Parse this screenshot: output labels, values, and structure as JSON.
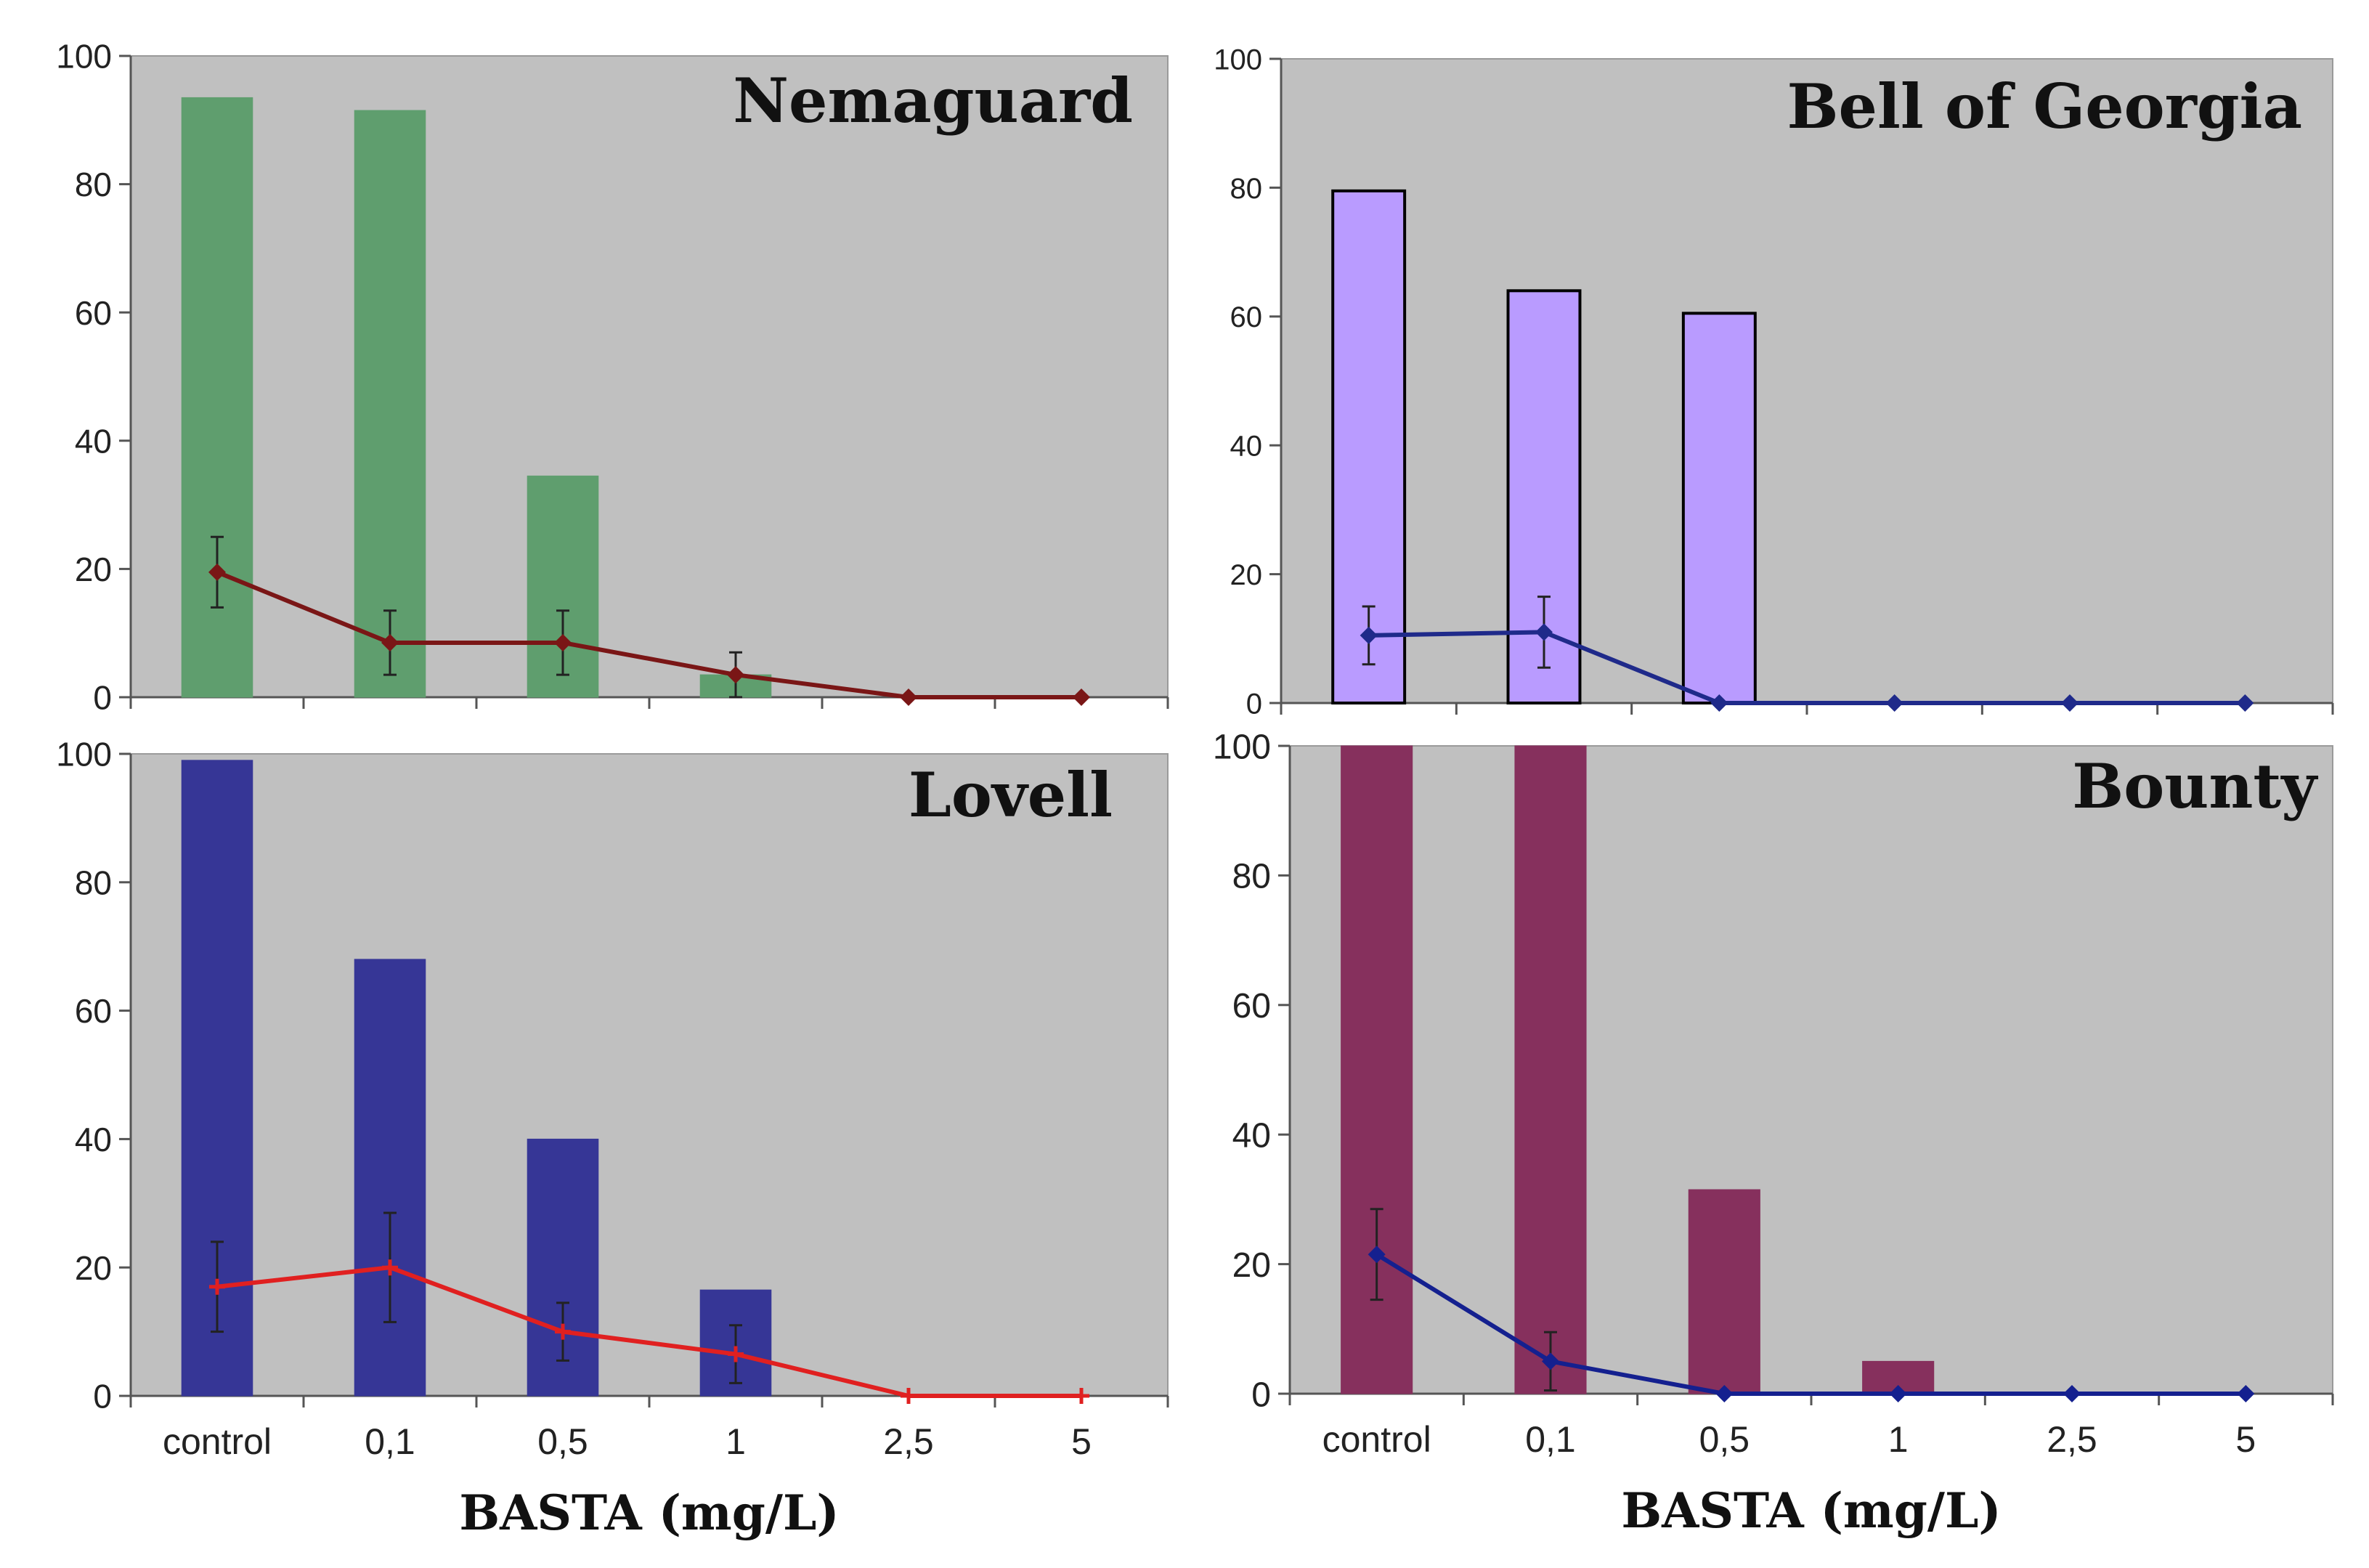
{
  "colors": {
    "plot_background": "#c0c0c0",
    "axis": "#555555",
    "nemaguard_bar": "#5f9e6e",
    "nemaguard_line": "#7a1616",
    "bell_bar": "#b99bff",
    "bell_line": "#1f2a8a",
    "lovell_bar": "#363696",
    "lovell_line": "#e02020",
    "bounty_bar": "#86305d",
    "bounty_line": "#14208f"
  },
  "chart_data": [
    {
      "type": "bar",
      "title": "Nemaguard",
      "categories": [
        "control",
        "0,1",
        "0,5",
        "1",
        "2,5",
        "5"
      ],
      "series": [
        {
          "name": "bars",
          "kind": "bar",
          "values": [
            93.5,
            91.5,
            34.5,
            3.5,
            0,
            0
          ]
        },
        {
          "name": "line",
          "kind": "line",
          "values": [
            19.5,
            8.5,
            8.5,
            3.5,
            0,
            0
          ],
          "errors": [
            5.5,
            5,
            5,
            3.5,
            0,
            0
          ]
        }
      ],
      "ylim": [
        0,
        100
      ],
      "yticks": [
        "0",
        "20",
        "40",
        "60",
        "80",
        "100"
      ],
      "xlabel": "",
      "ylabel": ""
    },
    {
      "type": "bar",
      "title": "Bell of Georgia",
      "categories": [
        "control",
        "0,1",
        "0,5",
        "1",
        "2,5",
        "5"
      ],
      "series": [
        {
          "name": "bars",
          "kind": "bar",
          "values": [
            79.5,
            64,
            60.5,
            0,
            0,
            0
          ]
        },
        {
          "name": "line",
          "kind": "line",
          "values": [
            10.5,
            11,
            0,
            0,
            0,
            0
          ],
          "errors": [
            4.5,
            5.5,
            0,
            0,
            0,
            0
          ]
        }
      ],
      "ylim": [
        0,
        100
      ],
      "yticks": [
        "0",
        "20",
        "40",
        "60",
        "80",
        "100"
      ],
      "xlabel": "",
      "ylabel": ""
    },
    {
      "type": "bar",
      "title": "Lovell",
      "categories": [
        "control",
        "0,1",
        "0,5",
        "1",
        "2,5",
        "5"
      ],
      "series": [
        {
          "name": "bars",
          "kind": "bar",
          "values": [
            99,
            68,
            40,
            16.5,
            0,
            0
          ]
        },
        {
          "name": "line",
          "kind": "line",
          "values": [
            17,
            20,
            10,
            6.5,
            0,
            0
          ],
          "errors": [
            7,
            8.5,
            4.5,
            4.5,
            0,
            0
          ]
        }
      ],
      "ylim": [
        0,
        100
      ],
      "yticks": [
        "0",
        "20",
        "40",
        "60",
        "80",
        "100"
      ],
      "xlabel": "BASTA (mg/L)",
      "ylabel": ""
    },
    {
      "type": "bar",
      "title": "Bounty",
      "categories": [
        "control",
        "0,1",
        "0,5",
        "1",
        "2,5",
        "5"
      ],
      "series": [
        {
          "name": "bars",
          "kind": "bar",
          "values": [
            100,
            100,
            31.5,
            5,
            0,
            0
          ]
        },
        {
          "name": "line",
          "kind": "line",
          "values": [
            21.5,
            5,
            0,
            0,
            0,
            0
          ],
          "errors": [
            7,
            4.5,
            0,
            0,
            0,
            0
          ]
        }
      ],
      "ylim": [
        0,
        100
      ],
      "yticks": [
        "0",
        "20",
        "40",
        "60",
        "80",
        "100"
      ],
      "xlabel": "BASTA (mg/L)",
      "ylabel": ""
    }
  ]
}
